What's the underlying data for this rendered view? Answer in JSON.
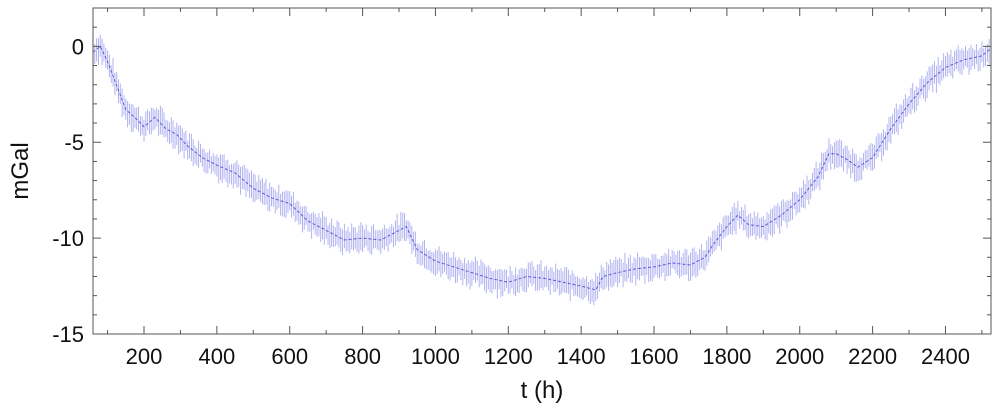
{
  "chart_data": {
    "type": "line",
    "title": "",
    "xlabel": "t (h)",
    "ylabel": "mGal",
    "xlim": [
      60,
      2525
    ],
    "ylim": [
      -15,
      2
    ],
    "xticks": [
      "200",
      "400",
      "600",
      "800",
      "1000",
      "1200",
      "1400",
      "1600",
      "1800",
      "2000",
      "2200",
      "2400"
    ],
    "yticks": [
      "0",
      "-5",
      "-10",
      "-15"
    ],
    "grid": false,
    "legend": "none",
    "error_bar_halfwidth": 0.6,
    "colors": {
      "series": "#3333cc",
      "error_bars": "#b3b3f2",
      "axes": "#555555"
    },
    "series": [
      {
        "x": [
          60,
          80,
          100,
          120,
          150,
          180,
          200,
          230,
          260,
          290,
          320,
          360,
          400,
          450,
          500,
          550,
          600,
          650,
          700,
          750,
          800,
          850,
          900,
          920,
          950,
          1000,
          1050,
          1100,
          1150,
          1200,
          1250,
          1300,
          1350,
          1400,
          1440,
          1460,
          1500,
          1550,
          1600,
          1650,
          1700,
          1740,
          1760,
          1800,
          1830,
          1860,
          1900,
          1950,
          2000,
          2050,
          2080,
          2100,
          2130,
          2160,
          2200,
          2250,
          2300,
          2350,
          2400,
          2450,
          2500,
          2525
        ],
        "y": [
          -0.3,
          0.0,
          -0.8,
          -1.8,
          -3.3,
          -3.8,
          -4.2,
          -3.7,
          -4.3,
          -4.6,
          -5.2,
          -5.8,
          -6.2,
          -6.6,
          -7.4,
          -7.9,
          -8.2,
          -9.1,
          -9.6,
          -10.1,
          -10.0,
          -10.1,
          -9.6,
          -9.4,
          -10.6,
          -11.2,
          -11.5,
          -11.8,
          -12.1,
          -12.3,
          -12.0,
          -12.1,
          -12.3,
          -12.5,
          -12.7,
          -12.0,
          -11.8,
          -11.6,
          -11.5,
          -11.3,
          -11.4,
          -11.0,
          -10.4,
          -9.4,
          -8.8,
          -9.3,
          -9.4,
          -8.8,
          -8.0,
          -6.8,
          -5.6,
          -5.6,
          -5.9,
          -6.3,
          -5.8,
          -4.3,
          -3.0,
          -1.9,
          -1.1,
          -0.7,
          -0.5,
          -0.1
        ]
      }
    ]
  }
}
